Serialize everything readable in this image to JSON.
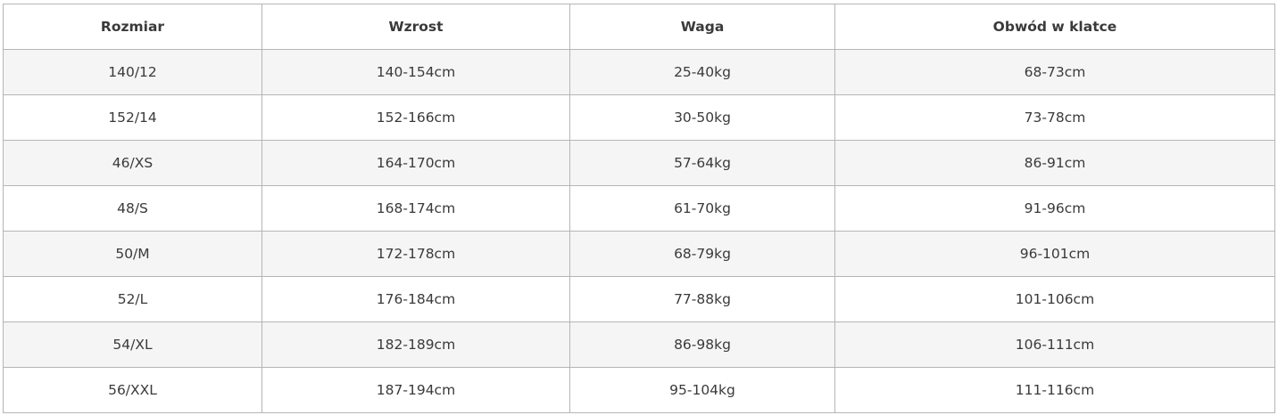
{
  "table": {
    "headers": [
      "Rozmiar",
      "Wzrost",
      "Waga",
      "Obwód w klatce"
    ],
    "rows": [
      [
        "140/12",
        "140-154cm",
        "25-40kg",
        "68-73cm"
      ],
      [
        "152/14",
        "152-166cm",
        "30-50kg",
        "73-78cm"
      ],
      [
        "46/XS",
        "164-170cm",
        "57-64kg",
        "86-91cm"
      ],
      [
        "48/S",
        "168-174cm",
        "61-70kg",
        "91-96cm"
      ],
      [
        "50/M",
        "172-178cm",
        "68-79kg",
        "96-101cm"
      ],
      [
        "52/L",
        "176-184cm",
        "77-88kg",
        "101-106cm"
      ],
      [
        "54/XL",
        "182-189cm",
        "86-98kg",
        "106-111cm"
      ],
      [
        "56/XXL",
        "187-194cm",
        "95-104kg",
        "111-116cm"
      ]
    ]
  }
}
